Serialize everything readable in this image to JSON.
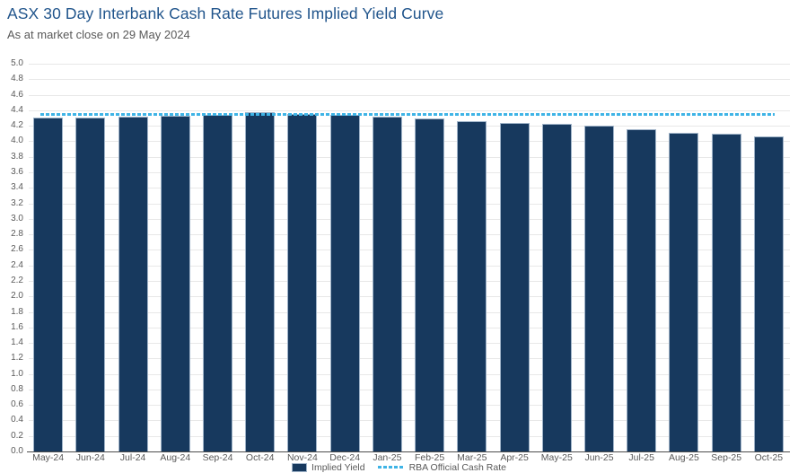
{
  "chart_data": {
    "type": "bar",
    "title": "ASX 30 Day Interbank Cash Rate Futures Implied Yield Curve",
    "subtitle": "As at market close on 29 May 2024",
    "categories": [
      "May-24",
      "Jun-24",
      "Jul-24",
      "Aug-24",
      "Sep-24",
      "Oct-24",
      "Nov-24",
      "Dec-24",
      "Jan-25",
      "Feb-25",
      "Mar-25",
      "Apr-25",
      "May-25",
      "Jun-25",
      "Jul-25",
      "Aug-25",
      "Sep-25",
      "Oct-25"
    ],
    "series": [
      {
        "name": "Implied Yield",
        "type": "bar",
        "values": [
          4.31,
          4.31,
          4.32,
          4.33,
          4.34,
          4.37,
          4.35,
          4.34,
          4.32,
          4.3,
          4.26,
          4.24,
          4.22,
          4.2,
          4.15,
          4.11,
          4.1,
          4.06
        ]
      },
      {
        "name": "RBA Official Cash Rate",
        "type": "dashed-line",
        "value": 4.35
      }
    ],
    "xlabel": "",
    "ylabel": "",
    "ylim": [
      0.0,
      5.0
    ],
    "ytick_step": 0.2,
    "grid": true,
    "legend_position": "bottom"
  },
  "legend": {
    "items": [
      {
        "label": "Implied Yield",
        "swatch": "bar"
      },
      {
        "label": "RBA Official Cash Rate",
        "swatch": "dashed-line"
      }
    ]
  },
  "colors": {
    "title": "#21558C",
    "subtitle_and_ticks": "#595959",
    "bar": "#17395E",
    "bar_border": "#9FB3C8",
    "rba_dashed_line": "#3FB4E6",
    "gridline": "#E8E8E8",
    "axis_line": "#4D4D4D",
    "background": "#FFFFFF"
  }
}
